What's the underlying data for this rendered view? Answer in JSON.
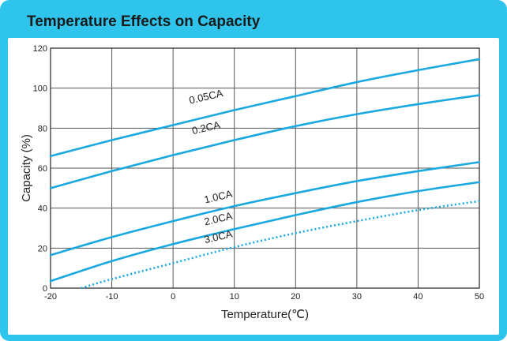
{
  "chart_data": {
    "type": "line",
    "title": "Temperature Effects on Capacity",
    "xlabel": "Temperature(℃)",
    "ylabel": "Capacity (%)",
    "xlim": [
      -20,
      50
    ],
    "ylim": [
      0,
      120
    ],
    "xticks": [
      "-20",
      "-10",
      "0",
      "10",
      "20",
      "30",
      "40",
      "50"
    ],
    "yticks": [
      "0",
      "20",
      "40",
      "60",
      "80",
      "100",
      "120"
    ],
    "grid": true,
    "colors": {
      "line": "#1aa8e0",
      "grid": "#555555",
      "frame": "#1a8fd0"
    },
    "series": [
      {
        "name": "0.05CA",
        "style": "solid",
        "x": [
          -20,
          -10,
          0,
          10,
          20,
          30,
          40,
          50
        ],
        "y": [
          66,
          74,
          81.5,
          89,
          96,
          103,
          109,
          114.5
        ]
      },
      {
        "name": "0.2CA",
        "style": "solid",
        "x": [
          -20,
          -10,
          0,
          10,
          20,
          30,
          40,
          50
        ],
        "y": [
          50,
          58.5,
          66.5,
          74,
          81,
          87,
          92,
          96.5
        ]
      },
      {
        "name": "1.0CA",
        "style": "solid",
        "x": [
          -20,
          -10,
          0,
          10,
          20,
          30,
          40,
          50
        ],
        "y": [
          16.5,
          25.5,
          33.5,
          41,
          47.5,
          53.5,
          58.5,
          63
        ]
      },
      {
        "name": "2.0CA",
        "style": "solid",
        "x": [
          -20,
          -10,
          0,
          10,
          20,
          30,
          40,
          50
        ],
        "y": [
          3.5,
          13.5,
          22,
          29.5,
          36.5,
          43,
          48.5,
          53
        ]
      },
      {
        "name": "3.0CA",
        "style": "dotted",
        "x": [
          -15,
          -10,
          0,
          10,
          20,
          30,
          40,
          50
        ],
        "y": [
          0,
          4.5,
          12.5,
          20.5,
          27.5,
          33.5,
          39,
          43.5
        ]
      }
    ],
    "labels": [
      {
        "text": "0.05CA",
        "x": 5.5,
        "y": 94,
        "angle": -13
      },
      {
        "text": "0.2CA",
        "x": 5.5,
        "y": 78.5,
        "angle": -13
      },
      {
        "text": "1.0CA",
        "x": 7.5,
        "y": 44,
        "angle": -13
      },
      {
        "text": "2.0CA",
        "x": 7.5,
        "y": 33,
        "angle": -13
      },
      {
        "text": "3.0CA",
        "x": 7.5,
        "y": 24,
        "angle": -13
      }
    ]
  }
}
